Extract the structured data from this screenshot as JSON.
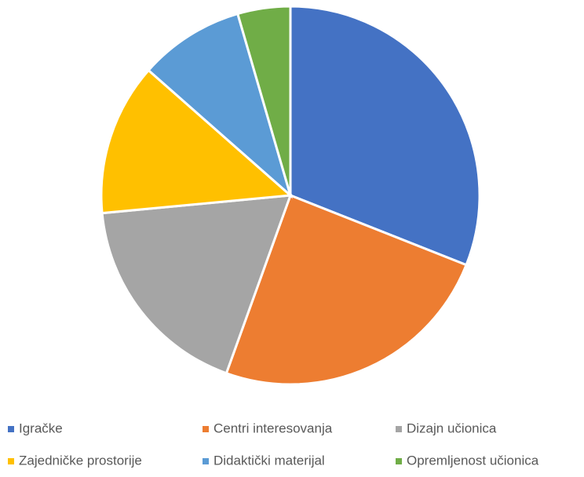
{
  "chart_data": {
    "type": "pie",
    "categories": [
      "Igračke",
      "Centri interesovanja",
      "Dizajn učionica",
      "Zajedničke prostorije",
      "Didaktički materijal",
      "Opremljenost učionica"
    ],
    "values": [
      31,
      24.5,
      18,
      13,
      9,
      4.5
    ],
    "colors": [
      "#4472c4",
      "#ed7d31",
      "#a5a5a5",
      "#ffc000",
      "#5b9bd5",
      "#70ad47"
    ],
    "legend": "bottom"
  }
}
